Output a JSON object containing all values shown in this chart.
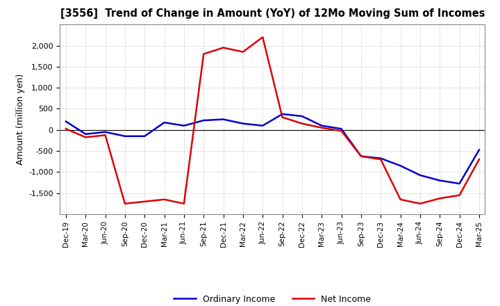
{
  "title": "[3556]  Trend of Change in Amount (YoY) of 12Mo Moving Sum of Incomes",
  "ylabel": "Amount (million yen)",
  "x_labels": [
    "Dec-19",
    "Mar-20",
    "Jun-20",
    "Sep-20",
    "Dec-20",
    "Mar-21",
    "Jun-21",
    "Sep-21",
    "Dec-21",
    "Mar-22",
    "Jun-22",
    "Sep-22",
    "Dec-22",
    "Mar-23",
    "Jun-23",
    "Sep-23",
    "Dec-23",
    "Mar-24",
    "Jun-24",
    "Sep-24",
    "Dec-24",
    "Mar-25"
  ],
  "ordinary_income": [
    200,
    -100,
    -50,
    -150,
    -150,
    175,
    100,
    225,
    250,
    150,
    100,
    375,
    325,
    100,
    25,
    -625,
    -675,
    -850,
    -1075,
    -1200,
    -1275,
    -475
  ],
  "net_income": [
    25,
    -175,
    -125,
    -1750,
    -1700,
    -1650,
    -1750,
    1800,
    1950,
    1850,
    2200,
    300,
    150,
    50,
    -25,
    -625,
    -700,
    -1650,
    -1750,
    -1625,
    -1550,
    -700
  ],
  "ordinary_color": "#0000cc",
  "net_color": "#dd0000",
  "ylim": [
    -2000,
    2500
  ],
  "yticks": [
    -1500,
    -1000,
    -500,
    0,
    500,
    1000,
    1500,
    2000
  ],
  "background_color": "#ffffff",
  "grid_color": "#bbbbbb",
  "legend_ordinary": "Ordinary Income",
  "legend_net": "Net Income"
}
